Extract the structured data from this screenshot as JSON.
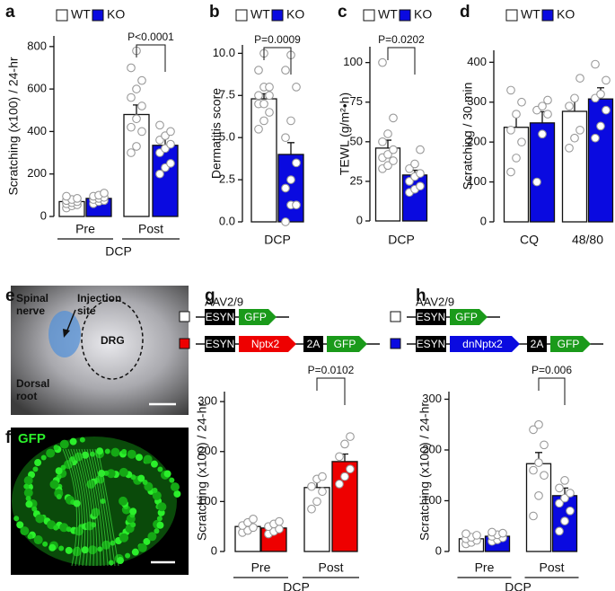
{
  "panel_labels": [
    "a",
    "b",
    "c",
    "d",
    "e",
    "f",
    "g",
    "h"
  ],
  "chart_data": [
    {
      "type": "bar",
      "ylabel": "Scratching (x100) / 24-hr",
      "categories": [
        "Pre",
        "Post"
      ],
      "group_label": "DCP",
      "annotation": "P<0.0001",
      "series": [
        {
          "name": "WT",
          "color": "#ffffff",
          "values": [
            70,
            480
          ],
          "errors": [
            10,
            45
          ],
          "points": [
            [
              40,
              50,
              55,
              60,
              65,
              70,
              75,
              80,
              85,
              95
            ],
            [
              300,
              330,
              400,
              420,
              460,
              520,
              560,
              600,
              640,
              700,
              780
            ]
          ]
        },
        {
          "name": "KO",
          "color": "#0a0ae0",
          "values": [
            85,
            335
          ],
          "errors": [
            8,
            35
          ],
          "points": [
            [
              60,
              70,
              75,
              80,
              85,
              90,
              95,
              100,
              110
            ],
            [
              200,
              230,
              250,
              300,
              320,
              340,
              360,
              380,
              400,
              430
            ]
          ]
        }
      ],
      "ylim": [
        0,
        850
      ],
      "yticks": [
        0,
        200,
        400,
        600,
        800
      ]
    },
    {
      "type": "bar",
      "ylabel": "Dermatitis score",
      "categories": [
        "DCP"
      ],
      "annotation": "P=0.0009",
      "series": [
        {
          "name": "WT",
          "color": "#ffffff",
          "values": [
            7.3
          ],
          "errors": [
            0.3
          ],
          "points": [
            [
              5.5,
              6,
              6.5,
              7,
              7,
              7.5,
              7.5,
              8,
              8,
              9,
              10
            ]
          ]
        },
        {
          "name": "KO",
          "color": "#0a0ae0",
          "values": [
            4.0
          ],
          "errors": [
            0.7
          ],
          "points": [
            [
              0,
              1,
              1,
              2,
              2.5,
              3.5,
              5,
              6,
              8,
              9,
              9.9
            ]
          ]
        }
      ],
      "ylim": [
        0,
        10.5
      ],
      "yticks": [
        {
          "value": 0,
          "label": "0.0"
        },
        {
          "value": 2.5,
          "label": "2.5"
        },
        {
          "value": 5,
          "label": "5.0"
        },
        {
          "value": 7.5,
          "label": "7.5"
        },
        {
          "value": 10,
          "label": "10.0"
        }
      ]
    },
    {
      "type": "bar",
      "ylabel": "TEWL (g/m²•h)",
      "categories": [
        "DCP"
      ],
      "annotation": "P=0.0202",
      "series": [
        {
          "name": "WT",
          "color": "#ffffff",
          "values": [
            46
          ],
          "errors": [
            5
          ],
          "points": [
            [
              33,
              35,
              38,
              40,
              42,
              45,
              50,
              55,
              65,
              100
            ]
          ]
        },
        {
          "name": "KO",
          "color": "#0a0ae0",
          "values": [
            29
          ],
          "errors": [
            3
          ],
          "points": [
            [
              18,
              20,
              22,
              25,
              28,
              30,
              33,
              36,
              45
            ]
          ]
        }
      ],
      "ylim": [
        0,
        110
      ],
      "yticks": [
        0,
        25,
        50,
        75,
        100
      ]
    },
    {
      "type": "bar",
      "ylabel": "Scratching / 30 min",
      "categories": [
        "CQ",
        "48/80"
      ],
      "series": [
        {
          "name": "WT",
          "color": "#ffffff",
          "values": [
            237,
            277
          ],
          "errors": [
            30,
            28
          ],
          "points": [
            [
              125,
              160,
              200,
              230,
              270,
              300,
              330
            ],
            [
              185,
              210,
              230,
              290,
              310,
              360
            ]
          ]
        },
        {
          "name": "KO",
          "color": "#0a0ae0",
          "values": [
            248,
            308
          ],
          "errors": [
            28,
            28
          ],
          "points": [
            [
              100,
              220,
              270,
              280,
              290,
              305
            ],
            [
              210,
              240,
              280,
              310,
              320,
              355,
              395
            ]
          ]
        }
      ],
      "ylim": [
        0,
        430
      ],
      "yticks": [
        0,
        100,
        200,
        300,
        400
      ]
    },
    {
      "type": "bar",
      "ylabel": "Scratching (x100) / 24-hr",
      "categories": [
        "Pre",
        "Post"
      ],
      "group_label": "DCP",
      "annotation": "P=0.0102",
      "series": [
        {
          "color": "#ffffff",
          "values": [
            50,
            128
          ],
          "errors": [
            5,
            15
          ],
          "points": [
            [
              38,
              42,
              48,
              52,
              58,
              65
            ],
            [
              85,
              100,
              120,
              130,
              145,
              150
            ]
          ]
        },
        {
          "color": "#ee0000",
          "values": [
            47,
            180
          ],
          "errors": [
            5,
            15
          ],
          "points": [
            [
              35,
              40,
              45,
              50,
              55,
              60
            ],
            [
              135,
              150,
              165,
              190,
              215,
              230
            ]
          ]
        }
      ],
      "ylim": [
        0,
        320
      ],
      "yticks": [
        0,
        100,
        200,
        300
      ]
    },
    {
      "type": "bar",
      "ylabel": "Scratching (x100) / 24-hr",
      "categories": [
        "Pre",
        "Post"
      ],
      "group_label": "DCP",
      "annotation": "P=0.006",
      "series": [
        {
          "color": "#ffffff",
          "values": [
            25,
            173
          ],
          "errors": [
            3,
            22
          ],
          "points": [
            [
              15,
              18,
              22,
              25,
              28,
              32,
              35
            ],
            [
              70,
              110,
              150,
              160,
              175,
              210,
              240,
              250
            ]
          ]
        },
        {
          "color": "#0a0ae0",
          "values": [
            30,
            110
          ],
          "errors": [
            3,
            15
          ],
          "points": [
            [
              20,
              23,
              27,
              30,
              33,
              36,
              38
            ],
            [
              40,
              60,
              80,
              95,
              105,
              115,
              125,
              140
            ]
          ]
        }
      ],
      "ylim": [
        0,
        315
      ],
      "yticks": [
        0,
        100,
        200,
        300
      ]
    }
  ],
  "photo_e": {
    "labels": [
      [
        "Spinal",
        "nerve"
      ],
      [
        "Injection",
        "site"
      ],
      [
        "DRG"
      ],
      [
        "Dorsal",
        "root"
      ]
    ]
  },
  "photo_f": {
    "label": "GFP"
  },
  "construct_g": {
    "vector": "AAV2/9",
    "rows": [
      [
        "ESYN",
        "GFP"
      ],
      [
        "ESYN",
        "Nptx2",
        "2A",
        "GFP"
      ]
    ]
  },
  "construct_h": {
    "vector": "AAV2/9",
    "rows": [
      [
        "ESYN",
        "GFP"
      ],
      [
        "ESYN",
        "dnNptx2",
        "2A",
        "GFP"
      ]
    ]
  }
}
